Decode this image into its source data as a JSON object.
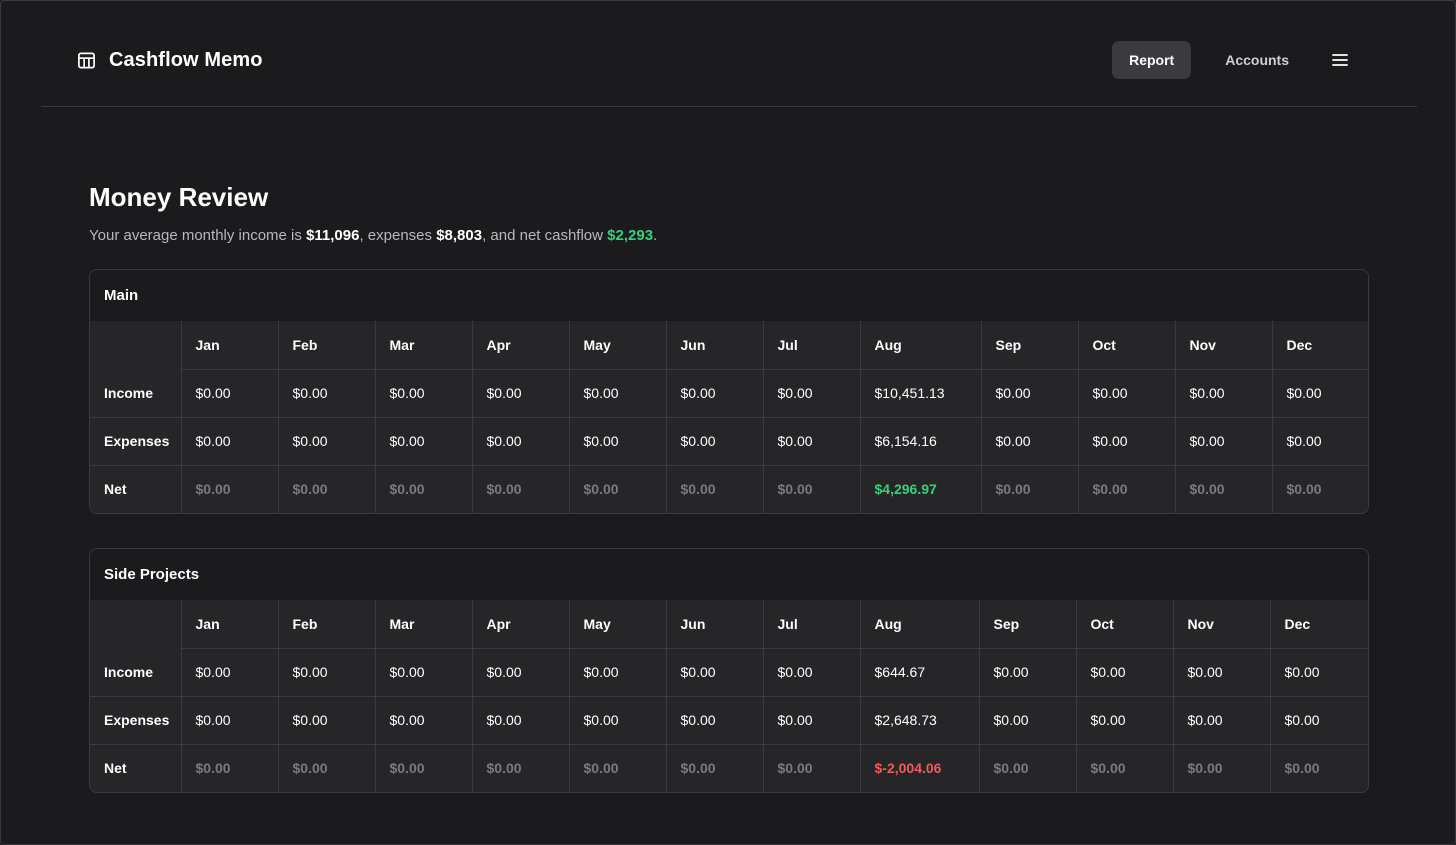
{
  "app": {
    "title": "Cashflow Memo",
    "icon": "table-grid-icon"
  },
  "nav": {
    "items": [
      {
        "label": "Report",
        "active": true
      },
      {
        "label": "Accounts",
        "active": false
      }
    ],
    "menu_icon": "hamburger-menu-icon"
  },
  "page": {
    "title": "Money Review",
    "summary": {
      "prefix": "Your average monthly income is ",
      "income": "$11,096",
      "mid1": ", expenses ",
      "expenses": "$8,803",
      "mid2": ", and net cashflow ",
      "net": "$2,293",
      "suffix": "."
    }
  },
  "colors": {
    "positive": "#34d17a",
    "negative": "#f05a5a",
    "muted": "#7a7a80"
  },
  "tables": [
    {
      "title": "Main",
      "months": [
        "Jan",
        "Feb",
        "Mar",
        "Apr",
        "May",
        "Jun",
        "Jul",
        "Aug",
        "Sep",
        "Oct",
        "Nov",
        "Dec"
      ],
      "rows": [
        {
          "label": "Income",
          "values": [
            "$0.00",
            "$0.00",
            "$0.00",
            "$0.00",
            "$0.00",
            "$0.00",
            "$0.00",
            "$10,451.13",
            "$0.00",
            "$0.00",
            "$0.00",
            "$0.00"
          ]
        },
        {
          "label": "Expenses",
          "values": [
            "$0.00",
            "$0.00",
            "$0.00",
            "$0.00",
            "$0.00",
            "$0.00",
            "$0.00",
            "$6,154.16",
            "$0.00",
            "$0.00",
            "$0.00",
            "$0.00"
          ]
        },
        {
          "label": "Net",
          "values": [
            "$0.00",
            "$0.00",
            "$0.00",
            "$0.00",
            "$0.00",
            "$0.00",
            "$0.00",
            "$4,296.97",
            "$0.00",
            "$0.00",
            "$0.00",
            "$0.00"
          ]
        }
      ]
    },
    {
      "title": "Side Projects",
      "months": [
        "Jan",
        "Feb",
        "Mar",
        "Apr",
        "May",
        "Jun",
        "Jul",
        "Aug",
        "Sep",
        "Oct",
        "Nov",
        "Dec"
      ],
      "rows": [
        {
          "label": "Income",
          "values": [
            "$0.00",
            "$0.00",
            "$0.00",
            "$0.00",
            "$0.00",
            "$0.00",
            "$0.00",
            "$644.67",
            "$0.00",
            "$0.00",
            "$0.00",
            "$0.00"
          ]
        },
        {
          "label": "Expenses",
          "values": [
            "$0.00",
            "$0.00",
            "$0.00",
            "$0.00",
            "$0.00",
            "$0.00",
            "$0.00",
            "$2,648.73",
            "$0.00",
            "$0.00",
            "$0.00",
            "$0.00"
          ]
        },
        {
          "label": "Net",
          "values": [
            "$0.00",
            "$0.00",
            "$0.00",
            "$0.00",
            "$0.00",
            "$0.00",
            "$0.00",
            "$-2,004.06",
            "$0.00",
            "$0.00",
            "$0.00",
            "$0.00"
          ]
        }
      ]
    }
  ]
}
